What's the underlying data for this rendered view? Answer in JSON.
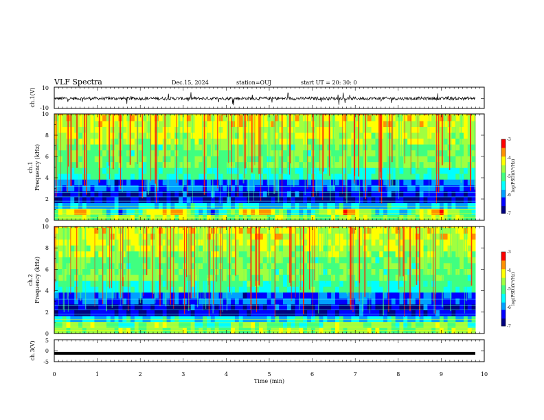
{
  "header": {
    "title": "VLF Spectra",
    "date": "Dec.15, 2024",
    "station": "station=OUJ",
    "start_ut": "start  UT =   20: 30: 0"
  },
  "chart_data": [
    {
      "type": "line",
      "panel": "ch1-waveform",
      "ylabel": "ch.1(V)",
      "ylim": [
        -10,
        10
      ],
      "yticks": [
        "10",
        "-10"
      ],
      "xlim": [
        0,
        10
      ],
      "description_values": {
        "baseline": 0,
        "typical_amplitude": 1.5,
        "spike_amplitude": 4
      }
    },
    {
      "type": "heatmap",
      "panel": "ch1-spectrogram",
      "ylabel": "Frequency (kHz)",
      "ylabel_prefix": "ch.1",
      "ylim": [
        0,
        10
      ],
      "yticks": [
        "0",
        "2",
        "4",
        "6",
        "8",
        "10"
      ],
      "xlim": [
        0,
        10
      ],
      "colorbar": {
        "label": "log(PSD)(V²/Hz)",
        "range": [
          -7,
          -3
        ],
        "ticks": [
          "-3",
          "-4",
          "-5",
          "-6",
          "-7"
        ]
      },
      "band_step": 0.55,
      "colormap": [
        "#00007f",
        "#0000ff",
        "#00a0ff",
        "#00ffff",
        "#40ff80",
        "#a0ff40",
        "#ffff00",
        "#ff9000",
        "#ff0000"
      ]
    },
    {
      "type": "heatmap",
      "panel": "ch2-spectrogram",
      "ylabel": "Frequency (kHz)",
      "ylabel_prefix": "ch.2",
      "ylim": [
        0,
        10
      ],
      "yticks": [
        "0",
        "2",
        "4",
        "6",
        "8",
        "10"
      ],
      "xlim": [
        0,
        10
      ],
      "colorbar": {
        "label": "log(PSD)(V²/Hz)",
        "range": [
          -7,
          -3
        ],
        "ticks": [
          "-3",
          "-4",
          "-5",
          "-6",
          "-7"
        ]
      },
      "band_step": 0.55
    },
    {
      "type": "line",
      "panel": "ch3-waveform",
      "ylabel": "ch.3(V)",
      "ylim": [
        -5,
        5
      ],
      "yticks": [
        "5",
        "0",
        "-5"
      ],
      "xlim": [
        0,
        10
      ],
      "values": {
        "constant": -1.2
      }
    }
  ],
  "xaxis": {
    "label": "Time (min)",
    "ticks": [
      "0",
      "1",
      "2",
      "3",
      "4",
      "5",
      "6",
      "7",
      "8",
      "9",
      "10"
    ]
  }
}
